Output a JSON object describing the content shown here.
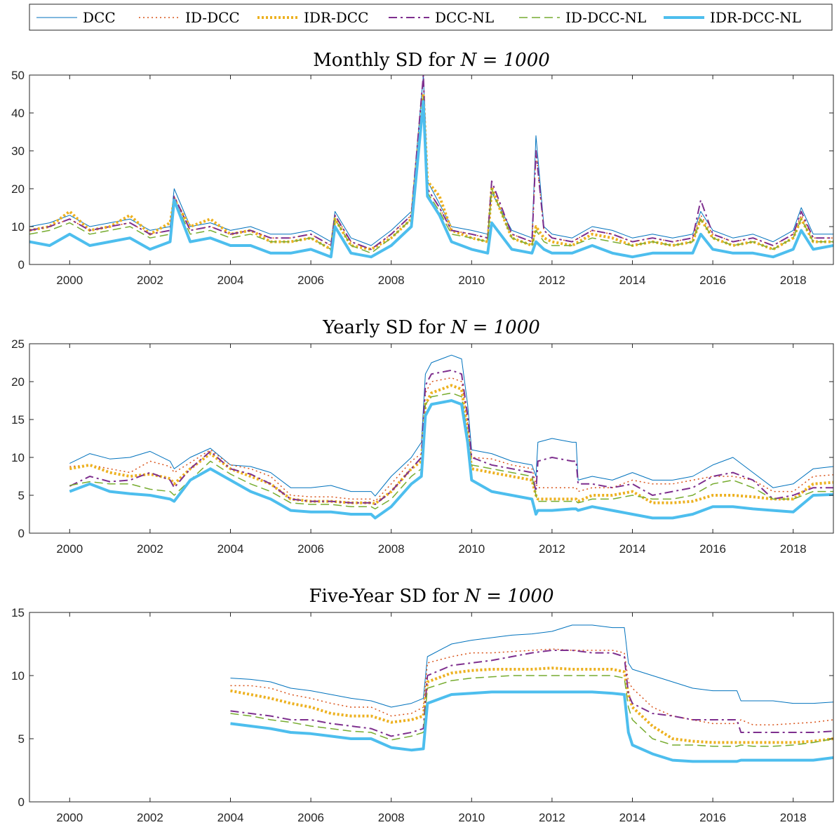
{
  "legend": {
    "entries": [
      {
        "label": "DCC",
        "color": "#0072BD",
        "dash": "solid",
        "width": 1
      },
      {
        "label": "ID-DCC",
        "color": "#D95319",
        "dash": "dotted",
        "width": 1.5
      },
      {
        "label": "IDR-DCC",
        "color": "#EDB120",
        "dash": "dotted-thick",
        "width": 4
      },
      {
        "label": "DCC-NL",
        "color": "#7E2F8E",
        "dash": "dashdot",
        "width": 2
      },
      {
        "label": "ID-DCC-NL",
        "color": "#77AC30",
        "dash": "dashed",
        "width": 1.5
      },
      {
        "label": "IDR-DCC-NL",
        "color": "#4DBEEE",
        "dash": "solid-thick",
        "width": 4
      }
    ]
  },
  "chart_data": [
    {
      "type": "line",
      "title": "Monthly SD for",
      "title_math": "N = 1000",
      "xlim": [
        1999,
        2019
      ],
      "ylim": [
        0,
        50
      ],
      "yticks": [
        0,
        10,
        20,
        30,
        40,
        50
      ],
      "xticks": [
        2000,
        2002,
        2004,
        2006,
        2008,
        2010,
        2012,
        2014,
        2016,
        2018
      ],
      "x": [
        1999.0,
        1999.5,
        2000.0,
        2000.5,
        2001.0,
        2001.5,
        2002.0,
        2002.5,
        2002.6,
        2003.0,
        2003.5,
        2004.0,
        2004.5,
        2005.0,
        2005.5,
        2006.0,
        2006.5,
        2006.6,
        2007.0,
        2007.5,
        2008.0,
        2008.5,
        2008.8,
        2008.9,
        2009.2,
        2009.5,
        2010.0,
        2010.4,
        2010.5,
        2011.0,
        2011.5,
        2011.6,
        2011.8,
        2012.0,
        2012.5,
        2013.0,
        2013.5,
        2014.0,
        2014.5,
        2015.0,
        2015.5,
        2015.7,
        2016.0,
        2016.5,
        2017.0,
        2017.5,
        2018.0,
        2018.2,
        2018.5,
        2019.0
      ],
      "series": [
        {
          "name": "DCC",
          "values": [
            10,
            11,
            13,
            10,
            11,
            12,
            9,
            10,
            20,
            10,
            11,
            9,
            10,
            8,
            8,
            9,
            6,
            14,
            7,
            5,
            9,
            14,
            50,
            22,
            16,
            10,
            9,
            8,
            19,
            9,
            7,
            34,
            10,
            8,
            7,
            10,
            9,
            7,
            8,
            7,
            8,
            14,
            9,
            7,
            8,
            6,
            9,
            15,
            8,
            8
          ]
        },
        {
          "name": "ID-DCC",
          "values": [
            9,
            10,
            12,
            9,
            10,
            11,
            8,
            9,
            18,
            9,
            10,
            8,
            9,
            7,
            7,
            8,
            5,
            13,
            6,
            4,
            8,
            13,
            45,
            20,
            15,
            9,
            8,
            7,
            21,
            8,
            6,
            30,
            9,
            7,
            6,
            9,
            8,
            6,
            7,
            6,
            7,
            13,
            8,
            6,
            7,
            5,
            8,
            13,
            7,
            7
          ]
        },
        {
          "name": "IDR-DCC",
          "values": [
            9,
            10,
            14,
            9,
            10,
            13,
            8,
            11,
            17,
            10,
            12,
            8,
            9,
            6,
            6,
            7,
            4,
            12,
            5,
            4,
            7,
            12,
            45,
            22,
            18,
            9,
            7,
            6,
            20,
            7,
            5,
            10,
            7,
            6,
            5,
            8,
            7,
            5,
            6,
            5,
            6,
            12,
            7,
            5,
            6,
            4,
            7,
            12,
            6,
            6
          ]
        },
        {
          "name": "DCC-NL",
          "values": [
            9,
            10,
            12,
            9,
            10,
            11,
            8,
            9,
            18,
            9,
            10,
            8,
            9,
            7,
            7,
            8,
            5,
            13,
            6,
            4,
            8,
            13,
            50,
            20,
            15,
            9,
            8,
            7,
            22,
            8,
            6,
            30,
            9,
            7,
            6,
            9,
            8,
            6,
            7,
            6,
            7,
            17,
            8,
            6,
            7,
            5,
            8,
            14,
            7,
            7
          ]
        },
        {
          "name": "ID-DCC-NL",
          "values": [
            8,
            9,
            11,
            8,
            9,
            10,
            7,
            8,
            17,
            8,
            9,
            7,
            8,
            6,
            6,
            7,
            4,
            12,
            5,
            3,
            7,
            12,
            44,
            19,
            14,
            8,
            7,
            6,
            20,
            7,
            5,
            9,
            6,
            5,
            5,
            7,
            6,
            5,
            6,
            5,
            6,
            12,
            7,
            5,
            6,
            4,
            7,
            12,
            6,
            6
          ]
        },
        {
          "name": "IDR-DCC-NL",
          "values": [
            6,
            5,
            8,
            5,
            6,
            7,
            4,
            6,
            17,
            6,
            7,
            5,
            5,
            3,
            3,
            4,
            2,
            10,
            3,
            2,
            5,
            10,
            43,
            18,
            13,
            6,
            4,
            3,
            11,
            4,
            3,
            6,
            4,
            3,
            3,
            5,
            3,
            2,
            3,
            3,
            3,
            8,
            4,
            3,
            3,
            2,
            4,
            9,
            4,
            5
          ]
        }
      ]
    },
    {
      "type": "line",
      "title": "Yearly SD for",
      "title_math": "N = 1000",
      "xlim": [
        1999,
        2019
      ],
      "ylim": [
        0,
        25
      ],
      "yticks": [
        0,
        5,
        10,
        15,
        20,
        25
      ],
      "xticks": [
        2000,
        2002,
        2004,
        2006,
        2008,
        2010,
        2012,
        2014,
        2016,
        2018
      ],
      "x": [
        2000.0,
        2000.5,
        2001.0,
        2001.5,
        2002.0,
        2002.5,
        2002.6,
        2003.0,
        2003.5,
        2004.0,
        2004.5,
        2005.0,
        2005.5,
        2006.0,
        2006.5,
        2007.0,
        2007.5,
        2007.6,
        2008.0,
        2008.5,
        2008.75,
        2008.85,
        2009.0,
        2009.5,
        2009.75,
        2009.9,
        2010.0,
        2010.5,
        2011.0,
        2011.5,
        2011.6,
        2011.65,
        2012.0,
        2012.5,
        2012.6,
        2012.65,
        2013.0,
        2013.5,
        2014.0,
        2014.5,
        2015.0,
        2015.5,
        2016.0,
        2016.5,
        2017.0,
        2017.5,
        2018.0,
        2018.5,
        2019.0
      ],
      "series": [
        {
          "name": "DCC",
          "values": [
            9.2,
            10.5,
            9.8,
            10.0,
            10.8,
            9.5,
            8.5,
            10.0,
            11.2,
            9.0,
            8.8,
            8.0,
            6.0,
            6.0,
            6.3,
            5.5,
            5.5,
            4.9,
            7.5,
            10.0,
            12.0,
            21.0,
            22.5,
            23.5,
            23.0,
            17.0,
            11.0,
            10.5,
            9.5,
            9.0,
            7.5,
            12.0,
            12.5,
            12.0,
            12.0,
            7.0,
            7.5,
            7.0,
            8.0,
            7.0,
            7.0,
            7.5,
            9.0,
            10.0,
            8.0,
            6.0,
            6.5,
            8.5,
            8.8
          ]
        },
        {
          "name": "ID-DCC",
          "values": [
            8.8,
            9.0,
            8.5,
            8.0,
            9.5,
            8.8,
            8.0,
            9.3,
            11.0,
            9.0,
            8.5,
            7.5,
            5.0,
            4.8,
            4.8,
            4.5,
            4.5,
            4.2,
            6.5,
            9.5,
            10.5,
            18.5,
            20.0,
            20.5,
            20.0,
            14.5,
            10.0,
            9.8,
            9.0,
            8.5,
            6.5,
            6.0,
            6.0,
            6.0,
            6.0,
            5.5,
            6.0,
            6.0,
            7.0,
            6.5,
            6.5,
            7.0,
            7.5,
            7.5,
            7.0,
            5.5,
            5.5,
            7.5,
            7.7
          ]
        },
        {
          "name": "IDR-DCC",
          "values": [
            8.5,
            9.0,
            8.0,
            7.5,
            7.8,
            7.2,
            6.5,
            8.5,
            10.5,
            8.5,
            7.5,
            6.5,
            4.5,
            4.2,
            4.2,
            4.0,
            4.0,
            3.9,
            5.5,
            8.5,
            9.5,
            17.0,
            18.5,
            19.5,
            19.0,
            13.5,
            8.5,
            8.0,
            7.5,
            7.0,
            5.0,
            4.5,
            4.5,
            4.5,
            4.5,
            4.2,
            5.0,
            5.0,
            5.5,
            4.0,
            4.0,
            4.2,
            5.0,
            5.0,
            4.8,
            4.5,
            4.5,
            6.5,
            6.7
          ]
        },
        {
          "name": "DCC-NL",
          "values": [
            6.2,
            7.5,
            6.8,
            7.0,
            8.0,
            7.0,
            6.0,
            8.5,
            10.8,
            8.5,
            7.8,
            6.5,
            4.5,
            4.2,
            4.2,
            4.0,
            4.0,
            3.8,
            5.5,
            8.5,
            10.0,
            19.5,
            21.0,
            21.5,
            21.0,
            15.5,
            10.0,
            9.0,
            8.5,
            8.0,
            5.5,
            9.5,
            10.0,
            9.5,
            9.5,
            6.5,
            6.5,
            6.0,
            6.5,
            5.0,
            5.5,
            6.0,
            7.5,
            8.0,
            7.0,
            4.5,
            5.0,
            6.0,
            6.0
          ]
        },
        {
          "name": "ID-DCC-NL",
          "values": [
            6.3,
            6.8,
            6.5,
            6.5,
            5.8,
            5.5,
            5.0,
            7.0,
            9.5,
            7.8,
            6.5,
            5.5,
            4.0,
            3.8,
            3.8,
            3.5,
            3.5,
            3.2,
            4.5,
            7.5,
            8.5,
            17.0,
            18.0,
            18.5,
            18.0,
            13.0,
            9.0,
            8.5,
            8.0,
            7.5,
            5.0,
            4.2,
            4.2,
            4.2,
            4.2,
            4.0,
            4.5,
            4.5,
            5.0,
            4.5,
            4.5,
            5.0,
            6.5,
            7.0,
            6.0,
            4.5,
            4.5,
            5.5,
            5.5
          ]
        },
        {
          "name": "IDR-DCC-NL",
          "values": [
            5.5,
            6.5,
            5.5,
            5.2,
            5.0,
            4.5,
            4.2,
            7.0,
            8.5,
            7.0,
            5.5,
            4.5,
            3.0,
            2.8,
            2.8,
            2.5,
            2.5,
            2.0,
            3.5,
            6.5,
            7.5,
            15.5,
            17.0,
            17.5,
            17.0,
            12.0,
            7.0,
            5.5,
            5.0,
            4.5,
            2.5,
            3.0,
            3.0,
            3.2,
            3.2,
            3.0,
            3.5,
            3.0,
            2.5,
            2.0,
            2.0,
            2.5,
            3.5,
            3.5,
            3.2,
            3.0,
            2.8,
            5.0,
            5.1
          ]
        }
      ]
    },
    {
      "type": "line",
      "title": "Five-Year SD for",
      "title_math": "N = 1000",
      "xlim": [
        1999,
        2019
      ],
      "ylim": [
        0,
        15
      ],
      "yticks": [
        0,
        5,
        10,
        15
      ],
      "xticks": [
        2000,
        2002,
        2004,
        2006,
        2008,
        2010,
        2012,
        2014,
        2016,
        2018
      ],
      "x": [
        2004.0,
        2004.5,
        2005.0,
        2005.5,
        2006.0,
        2006.5,
        2007.0,
        2007.5,
        2008.0,
        2008.5,
        2008.8,
        2008.9,
        2009.5,
        2010.0,
        2010.5,
        2011.0,
        2011.5,
        2012.0,
        2012.5,
        2013.0,
        2013.5,
        2013.8,
        2013.9,
        2014.0,
        2014.5,
        2015.0,
        2015.5,
        2016.0,
        2016.5,
        2016.6,
        2016.7,
        2017.0,
        2017.5,
        2018.0,
        2018.5,
        2019.0
      ],
      "series": [
        {
          "name": "DCC",
          "values": [
            9.8,
            9.7,
            9.5,
            9.0,
            8.8,
            8.5,
            8.2,
            8.0,
            7.5,
            7.8,
            8.2,
            11.5,
            12.5,
            12.8,
            13.0,
            13.2,
            13.3,
            13.5,
            14.0,
            14.0,
            13.8,
            13.8,
            11.0,
            10.5,
            10.0,
            9.5,
            9.0,
            8.8,
            8.8,
            8.8,
            8.0,
            8.0,
            8.0,
            7.8,
            7.8,
            7.9
          ]
        },
        {
          "name": "ID-DCC",
          "values": [
            9.2,
            9.2,
            9.0,
            8.5,
            8.2,
            7.8,
            7.5,
            7.5,
            6.8,
            7.0,
            7.5,
            11.0,
            11.5,
            11.8,
            11.8,
            11.9,
            12.0,
            12.1,
            12.0,
            12.0,
            12.0,
            11.8,
            9.5,
            9.0,
            7.5,
            6.8,
            6.5,
            6.2,
            6.2,
            6.2,
            6.5,
            6.1,
            6.1,
            6.2,
            6.3,
            6.5
          ]
        },
        {
          "name": "IDR-DCC",
          "values": [
            8.8,
            8.5,
            8.2,
            7.8,
            7.5,
            7.0,
            6.8,
            6.8,
            6.3,
            6.5,
            6.8,
            9.5,
            10.2,
            10.4,
            10.5,
            10.5,
            10.5,
            10.6,
            10.5,
            10.5,
            10.5,
            10.3,
            8.5,
            7.5,
            6.0,
            5.0,
            4.8,
            4.7,
            4.7,
            4.7,
            4.7,
            4.7,
            4.7,
            4.7,
            4.8,
            5.0
          ]
        },
        {
          "name": "DCC-NL",
          "values": [
            7.2,
            7.0,
            6.8,
            6.5,
            6.5,
            6.2,
            6.0,
            5.8,
            5.2,
            5.5,
            5.8,
            10.0,
            10.8,
            11.0,
            11.2,
            11.5,
            11.8,
            12.0,
            12.0,
            11.8,
            11.8,
            11.5,
            8.5,
            7.8,
            7.0,
            6.8,
            6.5,
            6.5,
            6.5,
            6.5,
            5.5,
            5.5,
            5.5,
            5.5,
            5.5,
            5.6
          ]
        },
        {
          "name": "ID-DCC-NL",
          "values": [
            7.0,
            6.8,
            6.5,
            6.3,
            6.0,
            5.8,
            5.6,
            5.5,
            4.9,
            5.2,
            5.5,
            9.0,
            9.6,
            9.8,
            9.9,
            10.0,
            10.0,
            10.0,
            10.0,
            10.0,
            10.0,
            9.8,
            7.5,
            6.5,
            5.0,
            4.5,
            4.5,
            4.4,
            4.4,
            4.4,
            4.5,
            4.4,
            4.4,
            4.5,
            4.7,
            5.0
          ]
        },
        {
          "name": "IDR-DCC-NL",
          "values": [
            6.2,
            6.0,
            5.8,
            5.5,
            5.4,
            5.2,
            5.0,
            5.0,
            4.3,
            4.1,
            4.2,
            7.8,
            8.5,
            8.6,
            8.7,
            8.7,
            8.7,
            8.7,
            8.7,
            8.7,
            8.6,
            8.5,
            5.5,
            4.5,
            3.8,
            3.3,
            3.2,
            3.2,
            3.2,
            3.2,
            3.3,
            3.3,
            3.3,
            3.3,
            3.3,
            3.5
          ]
        }
      ]
    }
  ]
}
